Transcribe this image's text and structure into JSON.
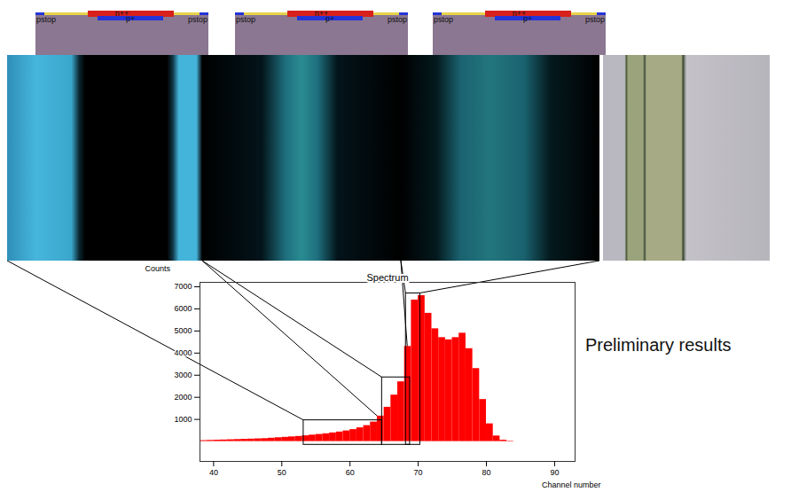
{
  "chart_data": {
    "type": "histogram",
    "title": "Spectrum",
    "x_label": "Channel number",
    "y_label": "Counts",
    "annotations": [
      "Preliminary results"
    ],
    "bins": [
      38,
      39,
      40,
      41,
      42,
      43,
      44,
      45,
      46,
      47,
      48,
      49,
      50,
      51,
      52,
      53,
      54,
      55,
      56,
      57,
      58,
      59,
      60,
      61,
      62,
      63,
      64,
      65,
      66,
      67,
      68,
      69,
      70,
      71,
      72,
      73,
      74,
      75,
      76,
      77,
      78,
      79,
      80,
      81,
      82,
      83,
      84
    ],
    "values": [
      40,
      50,
      60,
      70,
      80,
      90,
      100,
      110,
      120,
      130,
      150,
      170,
      190,
      210,
      230,
      260,
      290,
      320,
      350,
      390,
      430,
      480,
      540,
      620,
      720,
      880,
      1150,
      1550,
      2100,
      2700,
      4300,
      6400,
      6600,
      5800,
      5100,
      4700,
      4600,
      4700,
      4900,
      4200,
      3300,
      1900,
      800,
      250,
      60,
      20
    ],
    "color": "#ff0000",
    "xlim": [
      38,
      93
    ],
    "ylim": [
      -900,
      7200
    ],
    "xticks": [
      40,
      50,
      60,
      70,
      80,
      90
    ],
    "yticks": [
      1000,
      2000,
      3000,
      4000,
      5000,
      6000,
      7000
    ],
    "regions": [
      {
        "x": [
          53.2,
          64.7
        ],
        "y": [
          -150,
          960
        ]
      },
      {
        "x": [
          64.7,
          68.8
        ],
        "y": [
          -150,
          2900
        ]
      },
      {
        "x": [
          68.2,
          70.3
        ],
        "y": [
          -150,
          6700
        ]
      }
    ]
  },
  "cross_sections": [
    {
      "labels": [
        "pstop",
        "n++",
        "p+",
        "pstop"
      ]
    },
    {
      "labels": [
        "pstop",
        "n++",
        "p+",
        "pstop"
      ]
    },
    {
      "labels": [
        "pstop",
        "n++",
        "p+",
        "pstop"
      ]
    }
  ]
}
